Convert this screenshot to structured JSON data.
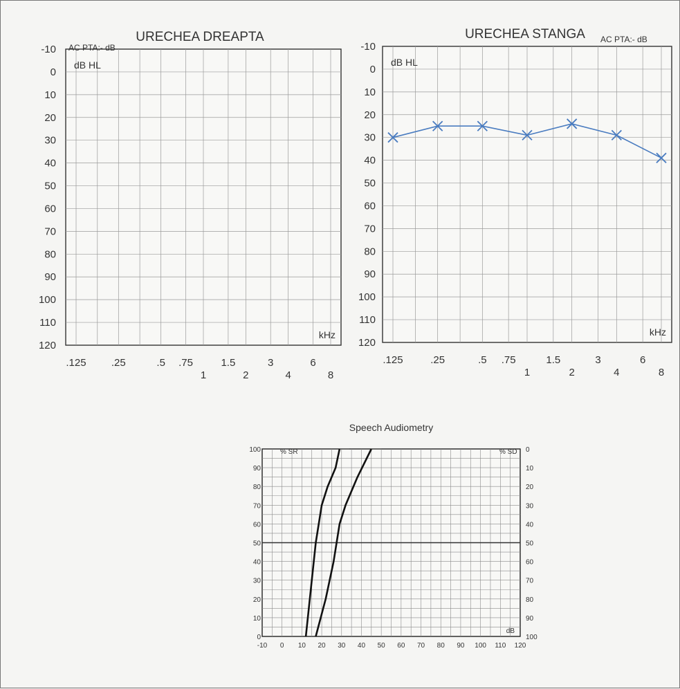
{
  "chart_data": [
    {
      "type": "line",
      "title": "URECHEA DREAPTA",
      "pta_label": "AC PTA:- dB",
      "unit_label": "dB HL",
      "x_unit_label": "kHz",
      "y_ticks": [
        "-10",
        "0",
        "10",
        "20",
        "30",
        "40",
        "50",
        "60",
        "70",
        "80",
        "90",
        "100",
        "110",
        "120"
      ],
      "ylim": [
        -10,
        120
      ],
      "x_ticks_upper": [
        ".125",
        ".25",
        ".5",
        ".75",
        "1.5",
        "3",
        "6"
      ],
      "x_ticks_lower": [
        "1",
        "2",
        "4",
        "8"
      ],
      "series": []
    },
    {
      "type": "line",
      "title": "URECHEA STANGA",
      "pta_label": "AC PTA:- dB",
      "unit_label": "dB HL",
      "x_unit_label": "kHz",
      "y_ticks": [
        "-10",
        "0",
        "10",
        "20",
        "30",
        "40",
        "50",
        "60",
        "70",
        "80",
        "90",
        "100",
        "110",
        "120"
      ],
      "ylim": [
        -10,
        120
      ],
      "x_ticks_upper": [
        ".125",
        ".25",
        ".5",
        ".75",
        "1.5",
        "3",
        "6"
      ],
      "x_ticks_lower": [
        "1",
        "2",
        "4",
        "8"
      ],
      "series": [
        {
          "x": [
            0.125,
            0.25,
            0.5,
            1,
            2,
            4,
            8
          ],
          "y": [
            30,
            25,
            25,
            29,
            24,
            29,
            39
          ]
        }
      ]
    },
    {
      "type": "line",
      "title": "Speech Audiometry",
      "left_axis_label": "% SR",
      "right_axis_label": "% SD",
      "x_unit_label": "dB",
      "left_ticks": [
        "100",
        "90",
        "80",
        "70",
        "60",
        "50",
        "40",
        "30",
        "20",
        "10",
        "0"
      ],
      "right_ticks": [
        "0",
        "10",
        "20",
        "30",
        "40",
        "50",
        "60",
        "70",
        "80",
        "90",
        "100"
      ],
      "x_ticks": [
        "-10",
        "0",
        "10",
        "20",
        "30",
        "40",
        "50",
        "60",
        "70",
        "80",
        "90",
        "100",
        "110",
        "120"
      ],
      "xlim": [
        -10,
        120
      ],
      "ylim": [
        0,
        100
      ],
      "series": [
        {
          "x": [
            12,
            14,
            17,
            20,
            23,
            27,
            29
          ],
          "y": [
            0,
            20,
            50,
            70,
            80,
            90,
            100
          ]
        },
        {
          "x": [
            17,
            22,
            26,
            29,
            32,
            38,
            45
          ],
          "y": [
            0,
            20,
            40,
            60,
            70,
            85,
            100
          ]
        }
      ]
    }
  ],
  "colors": {
    "right_ear_label": "#d9534f",
    "left_ear": "#4a7cc0",
    "grid": "#9a9a9a",
    "ink": "#222222"
  }
}
